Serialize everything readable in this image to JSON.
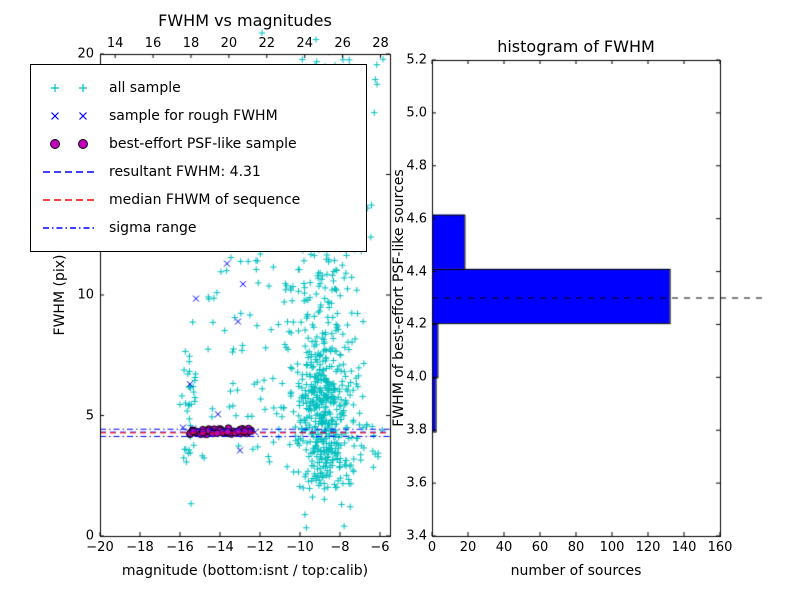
{
  "left_plot": {
    "title": "FWHM vs magnitudes",
    "xlabel": "magnitude (bottom:isnt / top:calib)",
    "ylabel": "FWHM (pix)",
    "x_ticks": {
      "values": [
        -20,
        -18,
        -16,
        -14,
        -12,
        -10,
        -8,
        -6
      ],
      "labels": [
        "−20",
        "−18",
        "−16",
        "−14",
        "−12",
        "−10",
        "−8",
        "−6"
      ]
    },
    "top_ticks": {
      "values": [
        14,
        16,
        18,
        20,
        22,
        24,
        26,
        28
      ],
      "labels": [
        "14",
        "16",
        "18",
        "20",
        "22",
        "24",
        "26",
        "28"
      ]
    },
    "y_ticks": {
      "values": [
        0,
        5,
        10,
        15,
        20
      ],
      "labels": [
        "0",
        "5",
        "10",
        "15",
        "20"
      ]
    }
  },
  "right_plot": {
    "title": "histogram of FWHM",
    "xlabel": "number of sources",
    "ylabel": "FWHM of best-effort PSF-like sources",
    "x_ticks": {
      "values": [
        0,
        20,
        40,
        60,
        80,
        100,
        120,
        140,
        160
      ],
      "labels": [
        "0",
        "20",
        "40",
        "60",
        "80",
        "100",
        "120",
        "140",
        "160"
      ]
    },
    "y_ticks": {
      "values": [
        3.4,
        3.6,
        3.8,
        4.0,
        4.2,
        4.4,
        4.6,
        4.8,
        5.0,
        5.2
      ],
      "labels": [
        "3.4",
        "3.6",
        "3.8",
        "4.0",
        "4.2",
        "4.4",
        "4.6",
        "4.8",
        "5.0",
        "5.2"
      ]
    }
  },
  "legend": {
    "items": [
      {
        "label": "all sample",
        "marker": "plus",
        "color": "#00bfbf"
      },
      {
        "label": "sample for rough FWHM",
        "marker": "cross",
        "color": "#0000ff"
      },
      {
        "label": "best-effort PSF-like sample",
        "marker": "circle",
        "color": "#bf00bf"
      },
      {
        "label": "resultant FWHM: 4.31",
        "marker": "dashed",
        "color": "#0000ff"
      },
      {
        "label": "median FHWM of sequence",
        "marker": "dashed",
        "color": "#ff0000"
      },
      {
        "label": "sigma range",
        "marker": "dashdot",
        "color": "#0000ff"
      }
    ]
  },
  "chart_data": [
    {
      "type": "scatter",
      "title": "FWHM vs magnitudes",
      "xlabel": "magnitude (bottom:isnt / top:calib)",
      "ylabel": "FWHM (pix)",
      "xlim": [
        -20,
        -5.5
      ],
      "ylim": [
        0,
        20
      ],
      "top_axis_xlim": [
        13.2,
        28.5
      ],
      "grid": false,
      "legend_position": "upper left",
      "series": [
        {
          "name": "all sample",
          "kind": "scatter",
          "marker": "+",
          "color": "#00bfbf",
          "clusters": [
            {
              "dist": "gauss",
              "cx": -8.8,
              "cy": 5.2,
              "sx": 0.75,
              "sy": 1.6,
              "n": 420
            },
            {
              "dist": "gauss",
              "cx": -8.9,
              "cy": 10.2,
              "sx": 0.95,
              "sy": 2.6,
              "n": 190
            },
            {
              "dist": "gauss",
              "cx": -8.6,
              "cy": 18.6,
              "sx": 1.1,
              "sy": 1.1,
              "n": 85
            },
            {
              "dist": "gauss",
              "cx": -8.5,
              "cy": 3.0,
              "sx": 0.8,
              "sy": 0.45,
              "n": 45
            },
            {
              "dist": "gauss",
              "cx": -15.45,
              "cy": 5.4,
              "sx": 0.16,
              "sy": 2.1,
              "n": 28
            },
            {
              "dist": "uniform",
              "x0": -14.6,
              "x1": -12.0,
              "y0": 7.5,
              "y1": 12.2,
              "n": 24
            },
            {
              "dist": "uniform",
              "x0": -16.2,
              "x1": -11.0,
              "y0": 3.2,
              "y1": 6.4,
              "n": 30
            },
            {
              "dist": "uniform",
              "x0": -12.6,
              "x1": -10.4,
              "y0": 3.0,
              "y1": 12.0,
              "n": 14
            },
            {
              "dist": "uniform",
              "x0": -7.3,
              "x1": -5.7,
              "y0": 3.2,
              "y1": 4.7,
              "n": 16
            },
            {
              "dist": "uniform",
              "x0": -11.5,
              "x1": -7.0,
              "y0": 14.0,
              "y1": 17.5,
              "n": 25
            }
          ],
          "outlier_points": [
            [
              -11.9,
              20.87
            ],
            [
              -9.2,
              20.6
            ]
          ]
        },
        {
          "name": "sample for rough FWHM",
          "kind": "scatter",
          "marker": "x",
          "color": "#0000ff",
          "points": [
            [
              -13.65,
              11.3
            ],
            [
              -12.85,
              10.45
            ],
            [
              -15.2,
              9.85
            ],
            [
              -13.1,
              8.9
            ],
            [
              -15.5,
              6.3
            ],
            [
              -14.1,
              5.05
            ],
            [
              -15.35,
              4.45
            ],
            [
              -14.75,
              4.4
            ],
            [
              -14.05,
              4.35
            ],
            [
              -13.35,
              4.3
            ],
            [
              -12.65,
              4.25
            ],
            [
              -12.25,
              4.3
            ],
            [
              -13.0,
              3.55
            ],
            [
              -15.85,
              4.5
            ]
          ]
        },
        {
          "name": "best-effort PSF-like sample",
          "kind": "scatter",
          "marker": "o",
          "color": "#bf00bf",
          "edge_color": "#000000",
          "cluster": {
            "dist": "hline",
            "x0": -15.55,
            "x1": -12.45,
            "cy": 4.33,
            "sy": 0.07,
            "n": 60
          }
        },
        {
          "name": "resultant FWHM: 4.31",
          "kind": "hline",
          "style": "dashed",
          "color": "#0000ff",
          "y": 4.31
        },
        {
          "name": "median FHWM of sequence",
          "kind": "hline",
          "style": "dashed",
          "color": "#ff0000",
          "y": 4.28
        },
        {
          "name": "sigma range",
          "kind": "hline",
          "style": "dashdot",
          "color": "#0000ff",
          "y_list": [
            4.13,
            4.43
          ]
        }
      ]
    },
    {
      "type": "bar",
      "orientation": "horizontal",
      "title": "histogram of FWHM",
      "xlabel": "number of sources",
      "ylabel": "FWHM of best-effort PSF-like sources",
      "xlim": [
        0,
        160
      ],
      "ylim": [
        3.4,
        5.2
      ],
      "bar_color": "#0000ff",
      "bar_edge_color": "#000000",
      "bins": [
        {
          "from": 3.795,
          "to": 4.0,
          "count": 2
        },
        {
          "from": 4.0,
          "to": 4.205,
          "count": 3
        },
        {
          "from": 4.205,
          "to": 4.41,
          "count": 132
        },
        {
          "from": 4.41,
          "to": 4.615,
          "count": 18
        }
      ],
      "dashed_line": {
        "y": 4.3,
        "color": "#000000",
        "extends_past_right_spine": true
      }
    }
  ]
}
